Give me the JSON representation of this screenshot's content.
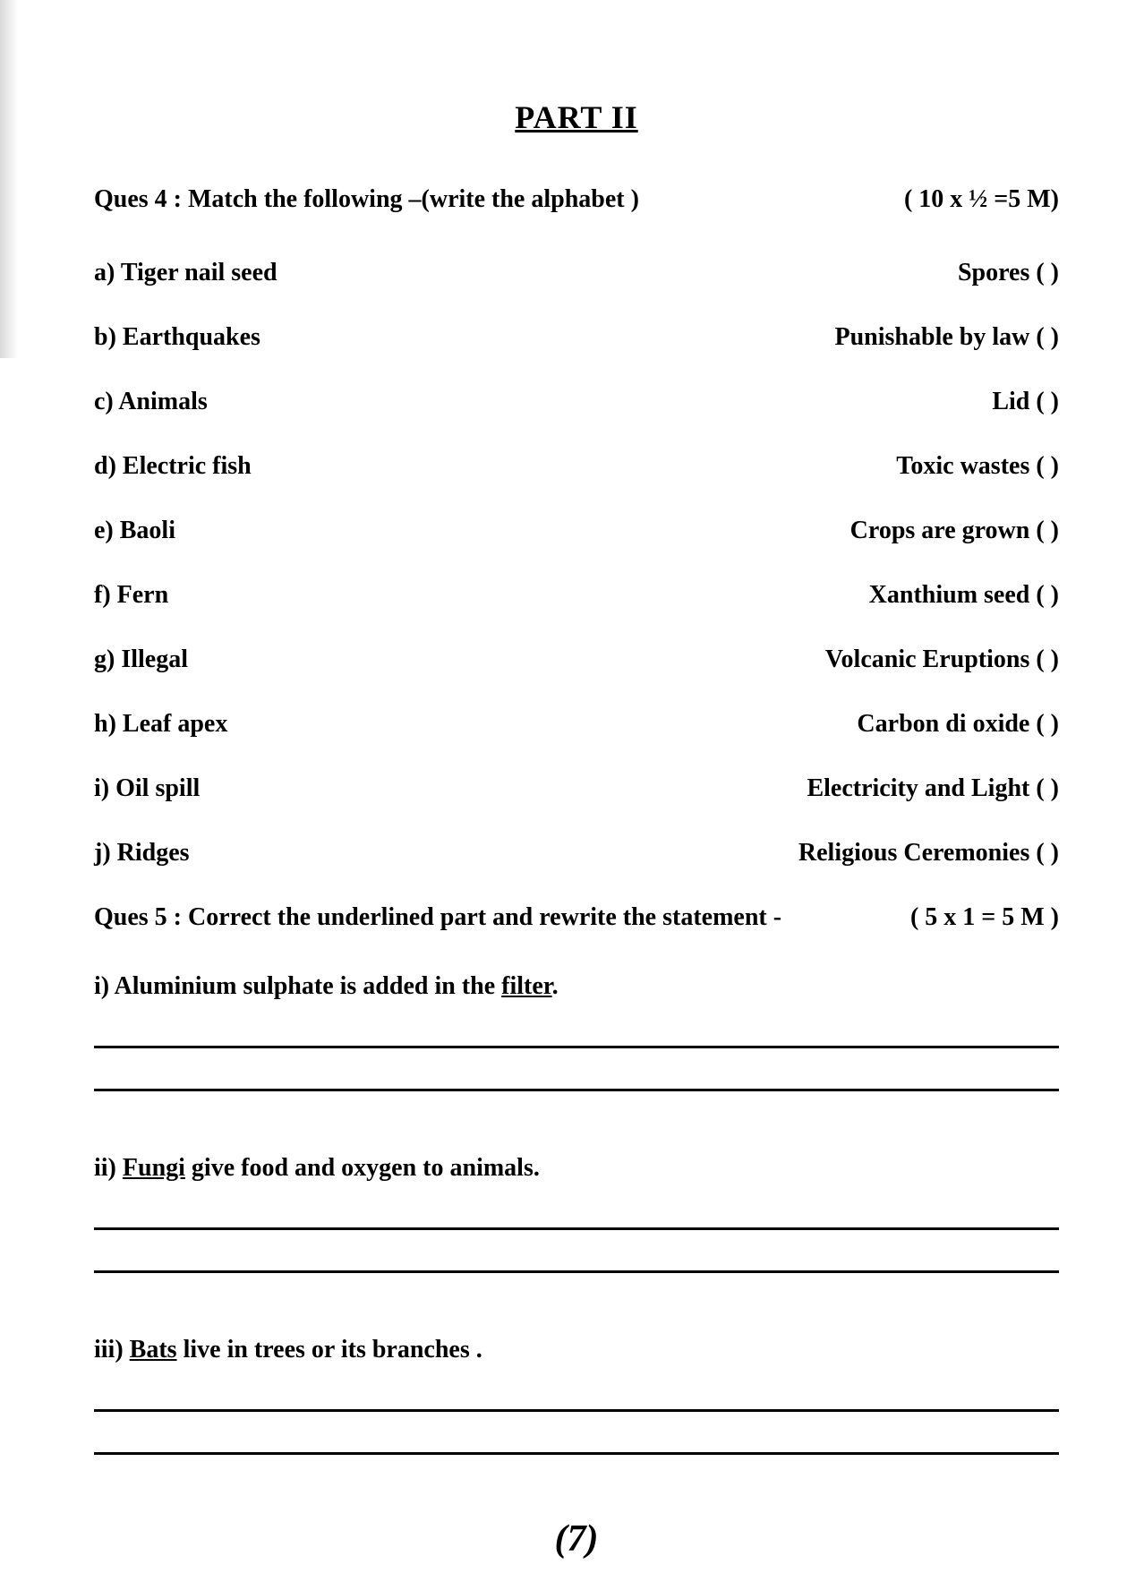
{
  "page": {
    "background_color": "#ffffff",
    "text_color": "#000000",
    "part_title": "PART II",
    "page_number": "(7)"
  },
  "question4": {
    "header_left": "Ques 4 : Match the following –(write the alphabet )",
    "header_right": "( 10 x ½ =5 M)",
    "items": [
      {
        "left": "a) Tiger nail seed",
        "right": "Spores (   )"
      },
      {
        "left": "b) Earthquakes",
        "right": "Punishable by law (   )"
      },
      {
        "left": "c) Animals",
        "right": "Lid (   )"
      },
      {
        "left": "d) Electric fish",
        "right": "Toxic wastes (   )"
      },
      {
        "left": "e) Baoli",
        "right": "Crops are grown (   )"
      },
      {
        "left": "f) Fern",
        "right": "Xanthium seed (   )"
      },
      {
        "left": "g) Illegal",
        "right": "Volcanic Eruptions (   )"
      },
      {
        "left": "h) Leaf apex",
        "right": "Carbon di oxide (   )"
      },
      {
        "left": "i) Oil spill",
        "right": "Electricity and Light (   )"
      },
      {
        "left": "j) Ridges",
        "right": "Religious Ceremonies (   )"
      }
    ]
  },
  "question5": {
    "header_left": "Ques 5 : Correct the underlined part and rewrite the statement -",
    "header_right": "( 5 x 1 = 5 M )",
    "statements": [
      {
        "prefix": "i) Aluminium sulphate is added in the ",
        "underlined": "filter",
        "suffix": "."
      },
      {
        "prefix": "ii) ",
        "underlined": "Fungi",
        "suffix": " give food and oxygen to animals."
      },
      {
        "prefix": "iii) ",
        "underlined": "Bats",
        "suffix": " live in trees or its branches ."
      }
    ]
  }
}
